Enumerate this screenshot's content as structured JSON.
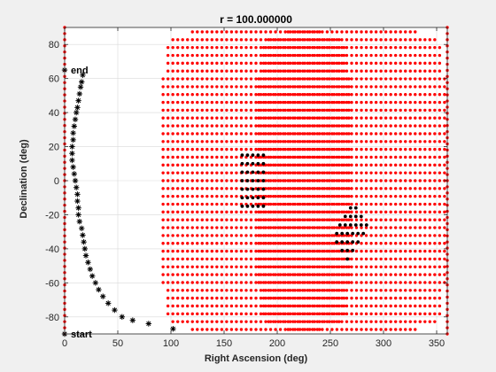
{
  "figure": {
    "background": "#f0f0f0",
    "plot_background": "#ffffff"
  },
  "chart_data": {
    "type": "scatter",
    "title": "r = 100.000000",
    "xlabel": "Right Ascension (deg)",
    "ylabel": "Declination (deg)",
    "xlim": [
      0,
      360
    ],
    "ylim": [
      -90,
      90
    ],
    "xticks": [
      0,
      50,
      100,
      150,
      200,
      250,
      300,
      350
    ],
    "yticks": [
      -80,
      -60,
      -40,
      -20,
      0,
      20,
      40,
      60,
      80
    ],
    "grid": true,
    "colors": {
      "grid_points": "#ff0000",
      "highlight_points": "#000000",
      "path": "#000000",
      "grid_lines": "#d9d9d9"
    },
    "series": [
      {
        "marker": "dot",
        "color": "#ff0000",
        "generator": {
          "description": "two spherical grid patches, RA centers 180 and 270",
          "pole_lines_ra": [
            0,
            360
          ],
          "pole_lines_dec_step": 3.6,
          "lattice_a_center_ra": 180,
          "lattice_b_center_ra": 270,
          "lattice_step_deg": 4.6
        }
      },
      {
        "marker": "dot",
        "color": "#000000",
        "points": [
          [
            167,
            15
          ],
          [
            172,
            15
          ],
          [
            177,
            15
          ],
          [
            182,
            15
          ],
          [
            187,
            15
          ],
          [
            167,
            10
          ],
          [
            172,
            10
          ],
          [
            177,
            10
          ],
          [
            182,
            10
          ],
          [
            187,
            10
          ],
          [
            167,
            5
          ],
          [
            172,
            5
          ],
          [
            177,
            5
          ],
          [
            182,
            5
          ],
          [
            187,
            5
          ],
          [
            167,
            0
          ],
          [
            172,
            0
          ],
          [
            177,
            0
          ],
          [
            182,
            0
          ],
          [
            187,
            0
          ],
          [
            167,
            -5
          ],
          [
            172,
            -5
          ],
          [
            177,
            -5
          ],
          [
            182,
            -5
          ],
          [
            187,
            -5
          ],
          [
            167,
            -10
          ],
          [
            172,
            -10
          ],
          [
            177,
            -10
          ],
          [
            182,
            -10
          ],
          [
            187,
            -10
          ],
          [
            167,
            -15
          ],
          [
            172,
            -15
          ],
          [
            177,
            -15
          ],
          [
            182,
            -15
          ],
          [
            187,
            -15
          ],
          [
            269,
            -16
          ],
          [
            274,
            -16
          ],
          [
            264,
            -21
          ],
          [
            269,
            -21
          ],
          [
            274,
            -21
          ],
          [
            279,
            -21
          ],
          [
            259,
            -26
          ],
          [
            264,
            -26
          ],
          [
            269,
            -26
          ],
          [
            274,
            -26
          ],
          [
            279,
            -26
          ],
          [
            284,
            -26
          ],
          [
            256,
            -31
          ],
          [
            261,
            -31
          ],
          [
            266,
            -31
          ],
          [
            271,
            -31
          ],
          [
            276,
            -31
          ],
          [
            281,
            -31
          ],
          [
            256,
            -36
          ],
          [
            261,
            -36
          ],
          [
            266,
            -36
          ],
          [
            271,
            -36
          ],
          [
            276,
            -36
          ],
          [
            261,
            -41
          ],
          [
            266,
            -41
          ],
          [
            271,
            -41
          ],
          [
            266,
            -46
          ]
        ]
      },
      {
        "marker": "star",
        "color": "#000000",
        "points": [
          [
            0,
            65
          ],
          [
            17,
            62
          ],
          [
            16,
            58
          ],
          [
            15,
            55
          ],
          [
            14,
            51
          ],
          [
            13,
            47
          ],
          [
            12,
            43
          ],
          [
            11,
            40
          ],
          [
            10,
            36
          ],
          [
            9,
            32
          ],
          [
            8,
            28
          ],
          [
            8,
            24
          ],
          [
            7,
            20
          ],
          [
            7,
            16
          ],
          [
            7,
            12
          ],
          [
            8,
            8
          ],
          [
            9,
            4
          ],
          [
            10,
            0
          ],
          [
            11,
            -4
          ],
          [
            12,
            -8
          ],
          [
            12,
            -12
          ],
          [
            13,
            -16
          ],
          [
            13,
            -20
          ],
          [
            14,
            -24
          ],
          [
            16,
            -28
          ],
          [
            17,
            -32
          ],
          [
            18,
            -36
          ],
          [
            19,
            -40
          ],
          [
            20,
            -44
          ],
          [
            22,
            -48
          ],
          [
            24,
            -52
          ],
          [
            26,
            -56
          ],
          [
            29,
            -60
          ],
          [
            32,
            -64
          ],
          [
            36,
            -68
          ],
          [
            41,
            -72
          ],
          [
            47,
            -76
          ],
          [
            54,
            -80
          ],
          [
            64,
            -82
          ],
          [
            79,
            -84
          ],
          [
            102,
            -87
          ],
          [
            0,
            -90
          ]
        ]
      }
    ],
    "annotations": [
      {
        "text": "end",
        "x": 0,
        "y": 65
      },
      {
        "text": "start",
        "x": 0,
        "y": -90
      }
    ]
  }
}
